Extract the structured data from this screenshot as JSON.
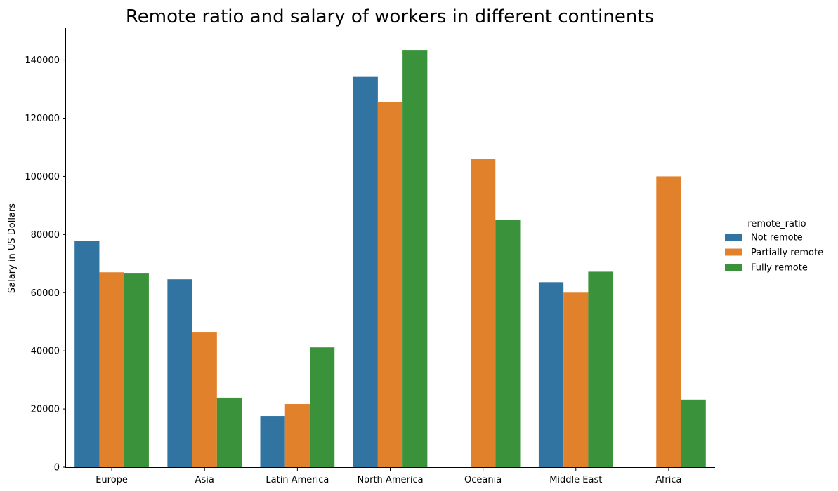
{
  "chart_data": {
    "type": "bar",
    "title": "Remote ratio and salary of workers in different continents",
    "xlabel": "",
    "ylabel": "Salary in US Dollars",
    "ylim": [
      0,
      151000
    ],
    "yticks": [
      0,
      20000,
      40000,
      60000,
      80000,
      100000,
      120000,
      140000
    ],
    "ytick_labels": [
      "0",
      "20000",
      "40000",
      "60000",
      "80000",
      "100000",
      "120000",
      "140000"
    ],
    "grid": false,
    "legend": {
      "title": "remote_ratio",
      "placement": "right"
    },
    "categories": [
      "Europe",
      "Asia",
      "Latin America",
      "North America",
      "Oceania",
      "Middle East",
      "Africa"
    ],
    "series": [
      {
        "name": "Not remote",
        "color": "#3274a1",
        "values": [
          77800,
          64600,
          17600,
          134200,
          null,
          63600,
          null
        ]
      },
      {
        "name": "Partially remote",
        "color": "#e1812c",
        "values": [
          67000,
          46300,
          21700,
          125600,
          105900,
          60000,
          100000
        ]
      },
      {
        "name": "Fully remote",
        "color": "#3a923a",
        "values": [
          66800,
          23900,
          41200,
          143500,
          85000,
          67200,
          23200
        ]
      }
    ]
  }
}
